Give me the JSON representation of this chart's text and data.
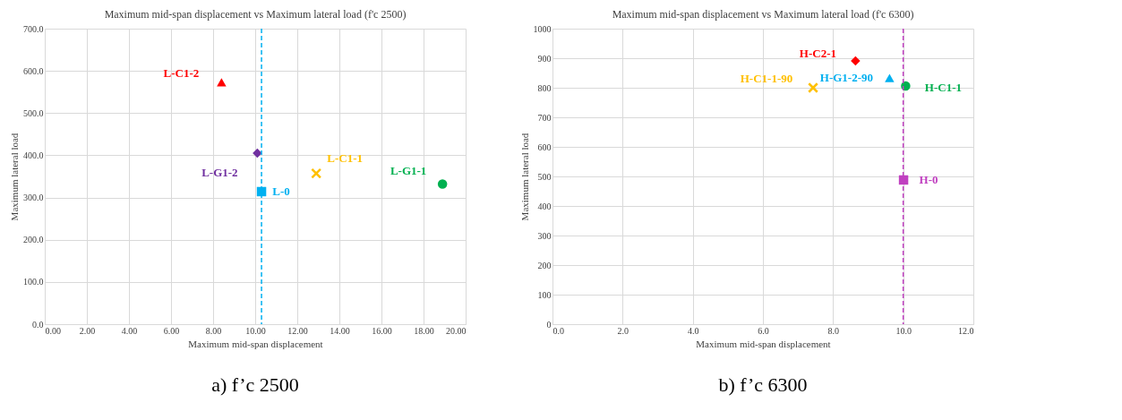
{
  "chart_data": [
    {
      "type": "scatter",
      "title": "Maximum mid-span displacement vs Maximum lateral load (f'c 2500)",
      "xlabel": "Maximum mid-span displacement",
      "ylabel": "Maximum lateral load",
      "xlim": [
        0,
        20
      ],
      "xticks": [
        {
          "value": 0,
          "label": "0.00"
        },
        {
          "value": 2,
          "label": "2.00"
        },
        {
          "value": 4,
          "label": "4.00"
        },
        {
          "value": 6,
          "label": "6.00"
        },
        {
          "value": 8,
          "label": "8.00"
        },
        {
          "value": 10,
          "label": "10.00"
        },
        {
          "value": 12,
          "label": "12.00"
        },
        {
          "value": 14,
          "label": "14.00"
        },
        {
          "value": 16,
          "label": "16.00"
        },
        {
          "value": 18,
          "label": "18.00"
        },
        {
          "value": 20,
          "label": "20.00"
        }
      ],
      "ylim": [
        0,
        700
      ],
      "yticks": [
        {
          "value": 0,
          "label": "0.0"
        },
        {
          "value": 100,
          "label": "100.0"
        },
        {
          "value": 200,
          "label": "200.0"
        },
        {
          "value": 300,
          "label": "300.0"
        },
        {
          "value": 400,
          "label": "400.0"
        },
        {
          "value": 500,
          "label": "500.0"
        },
        {
          "value": 600,
          "label": "600.0"
        },
        {
          "value": 700,
          "label": "700.0"
        }
      ],
      "grid": true,
      "series": [
        {
          "name": "L-C1-2",
          "color": "#ff0000",
          "marker": "triangle",
          "x": [
            8.4
          ],
          "values": [
            573
          ]
        },
        {
          "name": "L-G1-2",
          "color": "#7030a0",
          "marker": "diamond",
          "x": [
            10.1
          ],
          "values": [
            405
          ]
        },
        {
          "name": "L-0",
          "color": "#00b0f0",
          "marker": "square",
          "x": [
            10.3
          ],
          "values": [
            314
          ]
        },
        {
          "name": "L-C1-1",
          "color": "#ffc000",
          "marker": "cross",
          "x": [
            12.9
          ],
          "values": [
            357
          ]
        },
        {
          "name": "L-G1-1",
          "color": "#00b050",
          "marker": "circle",
          "x": [
            18.9
          ],
          "values": [
            332
          ]
        }
      ],
      "ref_lines": [
        {
          "axis": "x",
          "value": 10.3,
          "color": "#00b0f0",
          "line_style": "dashed"
        }
      ],
      "annotations": [
        "a)    f’c 2500"
      ]
    },
    {
      "type": "scatter",
      "title": "Maximum mid-span displacement vs Maximum lateral load (f'c 6300)",
      "xlabel": "Maximum mid-span displacement",
      "ylabel": "Maximum lateral load",
      "xlim": [
        0,
        12
      ],
      "xticks": [
        {
          "value": 0,
          "label": "0.0"
        },
        {
          "value": 2,
          "label": "2.0"
        },
        {
          "value": 4,
          "label": "4.0"
        },
        {
          "value": 6,
          "label": "6.0"
        },
        {
          "value": 8,
          "label": "8.0"
        },
        {
          "value": 10,
          "label": "10.0"
        },
        {
          "value": 12,
          "label": "12.0"
        }
      ],
      "ylim": [
        0,
        1000
      ],
      "yticks": [
        0,
        100,
        200,
        300,
        400,
        500,
        600,
        700,
        800,
        900,
        1000
      ],
      "grid": true,
      "series": [
        {
          "name": "H-C2-1",
          "color": "#ff0000",
          "marker": "diamond",
          "x": [
            8.64
          ],
          "values": [
            891
          ]
        },
        {
          "name": "H-G1-2-90",
          "color": "#00b0f0",
          "marker": "triangle",
          "x": [
            9.61
          ],
          "values": [
            833
          ]
        },
        {
          "name": "H-C1-1",
          "color": "#00b050",
          "marker": "circle",
          "x": [
            10.07
          ],
          "values": [
            806
          ]
        },
        {
          "name": "H-C1-1-90",
          "color": "#ffc000",
          "marker": "cross",
          "x": [
            7.43
          ],
          "values": [
            800
          ]
        },
        {
          "name": "H-0",
          "color": "#c040c0",
          "marker": "square",
          "x": [
            10.01
          ],
          "values": [
            488
          ]
        }
      ],
      "ref_lines": [
        {
          "axis": "x",
          "value": 10.0,
          "color": "#c040c0",
          "line_style": "dashed"
        }
      ],
      "annotations": [
        "b)    f’c 6300"
      ]
    }
  ]
}
